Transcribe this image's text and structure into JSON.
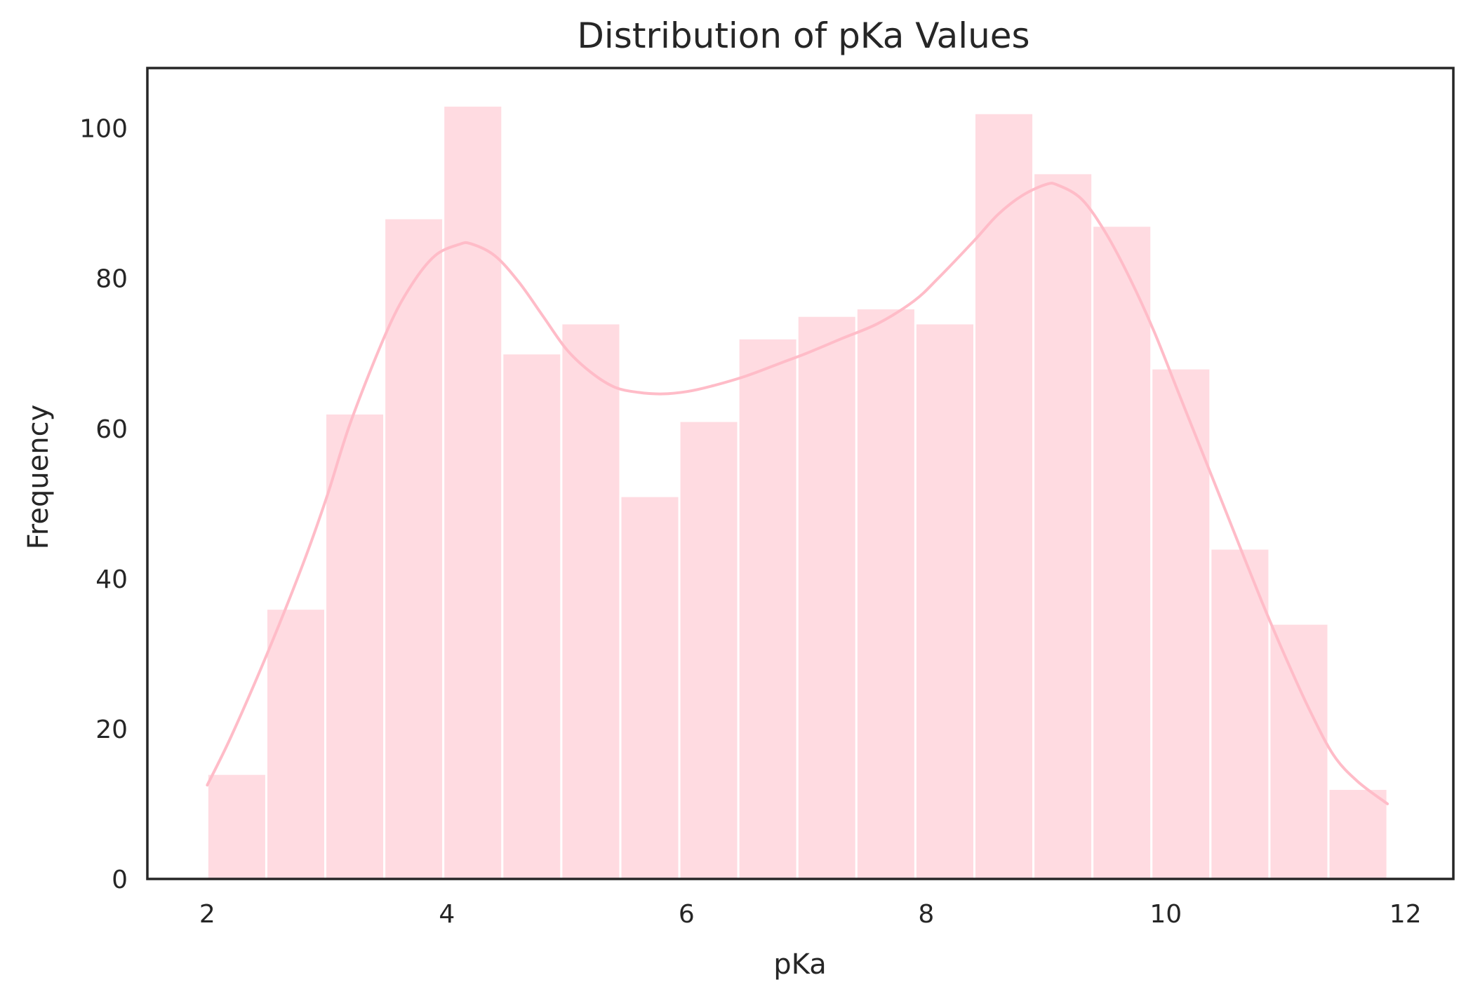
{
  "chart_data": {
    "type": "bar",
    "title": "Distribution of pKa Values",
    "xlabel": "pKa",
    "ylabel": "Frequency",
    "xlim": [
      1.5,
      12.4
    ],
    "ylim": [
      0,
      108
    ],
    "xticks": [
      2,
      4,
      6,
      8,
      10,
      12
    ],
    "yticks": [
      0,
      20,
      40,
      60,
      80,
      100
    ],
    "bin_edges": [
      2.0,
      2.4925,
      2.985,
      3.4775,
      3.97,
      4.4625,
      4.955,
      5.4475,
      5.94,
      6.4325,
      6.925,
      7.4175,
      7.91,
      8.4025,
      8.895,
      9.3875,
      9.88,
      10.3725,
      10.865,
      11.3575,
      11.85
    ],
    "values": [
      14,
      36,
      62,
      88,
      103,
      70,
      74,
      51,
      61,
      72,
      75,
      76,
      74,
      102,
      94,
      87,
      68,
      44,
      34,
      12
    ],
    "kde": {
      "x": [
        2.0,
        2.2,
        2.5,
        2.8,
        3.0,
        3.2,
        3.5,
        3.7,
        3.9,
        4.1,
        4.2,
        4.4,
        4.6,
        4.8,
        5.0,
        5.2,
        5.4,
        5.6,
        5.8,
        6.0,
        6.2,
        6.5,
        6.8,
        7.0,
        7.3,
        7.6,
        7.9,
        8.1,
        8.4,
        8.6,
        8.8,
        9.0,
        9.1,
        9.3,
        9.5,
        9.7,
        9.9,
        10.1,
        10.3,
        10.5,
        10.8,
        11.0,
        11.2,
        11.4,
        11.6,
        11.85
      ],
      "y": [
        12.5,
        19,
        30,
        42,
        51,
        61,
        73,
        79,
        83,
        84.5,
        84.6,
        83,
        79.5,
        75,
        70.5,
        67.5,
        65.5,
        64.8,
        64.6,
        64.9,
        65.6,
        67,
        68.8,
        70,
        72,
        74,
        77,
        80,
        85,
        88.5,
        91,
        92.5,
        92.4,
        90.5,
        86,
        80,
        73,
        65,
        57,
        49,
        37,
        29.5,
        22.5,
        16.5,
        13,
        10
      ]
    },
    "colors": {
      "bar": "#ffdbe1",
      "kde": "#ffbcc8",
      "axes": "#262626"
    },
    "grid": false,
    "legend": false
  }
}
